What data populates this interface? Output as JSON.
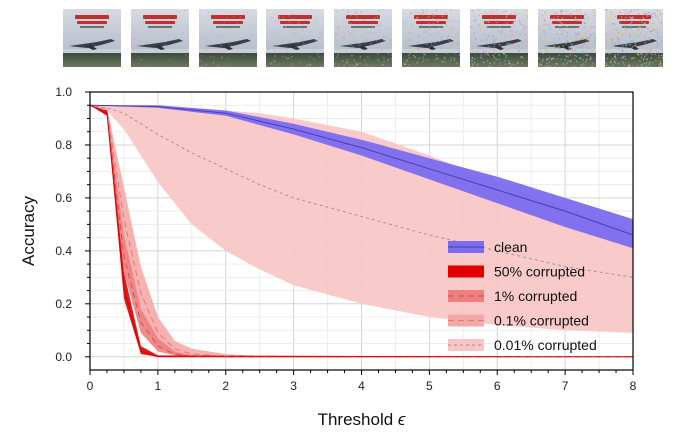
{
  "thumbnails": [
    {
      "name": "thumb-eps-0",
      "noise": 0.0
    },
    {
      "name": "thumb-eps-1",
      "noise": 0.12
    },
    {
      "name": "thumb-eps-2",
      "noise": 0.24
    },
    {
      "name": "thumb-eps-3",
      "noise": 0.36
    },
    {
      "name": "thumb-eps-4",
      "noise": 0.48
    },
    {
      "name": "thumb-eps-5",
      "noise": 0.6
    },
    {
      "name": "thumb-eps-6",
      "noise": 0.72
    },
    {
      "name": "thumb-eps-7",
      "noise": 0.84
    },
    {
      "name": "thumb-eps-8",
      "noise": 0.96
    }
  ],
  "chart_data": {
    "type": "line",
    "title": "",
    "xlabel": "Threshold",
    "xlabel_symbol": "ϵ",
    "ylabel": "Accuracy",
    "xlim": [
      0,
      8
    ],
    "ylim": [
      -0.05,
      1.0
    ],
    "xticks": [
      0,
      1,
      2,
      3,
      4,
      5,
      6,
      7,
      8
    ],
    "yticks": [
      0.0,
      0.2,
      0.4,
      0.6,
      0.8,
      1.0
    ],
    "xtick_labels": [
      "0",
      "1",
      "2",
      "3",
      "4",
      "5",
      "6",
      "7",
      "8"
    ],
    "ytick_labels": [
      "0.0",
      "0.2",
      "0.4",
      "0.6",
      "0.8",
      "1.0"
    ],
    "grid": true,
    "legend_position": "lower-right",
    "series": [
      {
        "name": "0.01% corrupted",
        "color": "#f8c4c4",
        "line_color": "#999999",
        "line_style": "dotted",
        "x": [
          0,
          0.25,
          0.5,
          1,
          1.5,
          2,
          2.5,
          3,
          4,
          5,
          6,
          7,
          8
        ],
        "y": [
          0.95,
          0.94,
          0.92,
          0.84,
          0.77,
          0.71,
          0.65,
          0.6,
          0.53,
          0.46,
          0.4,
          0.34,
          0.3
        ],
        "lower": [
          0.95,
          0.93,
          0.86,
          0.66,
          0.5,
          0.4,
          0.33,
          0.27,
          0.2,
          0.15,
          0.12,
          0.1,
          0.09
        ],
        "upper": [
          0.95,
          0.95,
          0.95,
          0.94,
          0.94,
          0.93,
          0.92,
          0.9,
          0.85,
          0.76,
          0.66,
          0.56,
          0.48
        ]
      },
      {
        "name": "0.1% corrupted",
        "color": "#f5a8a8",
        "line_color": "#e07a7a",
        "line_style": "dashed",
        "x": [
          0,
          0.25,
          0.5,
          0.75,
          1,
          1.25,
          1.5,
          2,
          2.5,
          3,
          8
        ],
        "y": [
          0.95,
          0.93,
          0.52,
          0.24,
          0.09,
          0.03,
          0.01,
          0.003,
          0.001,
          0.0,
          0.0
        ],
        "lower": [
          0.95,
          0.92,
          0.4,
          0.15,
          0.04,
          0.01,
          0.0,
          0.0,
          0.0,
          0.0,
          0.0
        ],
        "upper": [
          0.95,
          0.94,
          0.64,
          0.34,
          0.15,
          0.06,
          0.03,
          0.01,
          0.003,
          0.0,
          0.0
        ]
      },
      {
        "name": "1% corrupted",
        "color": "#ef7f7f",
        "line_color": "#c85050",
        "line_style": "dashed",
        "x": [
          0,
          0.25,
          0.5,
          0.75,
          1,
          1.25,
          1.5,
          2,
          8
        ],
        "y": [
          0.95,
          0.92,
          0.38,
          0.13,
          0.04,
          0.01,
          0.003,
          0.0,
          0.0
        ],
        "lower": [
          0.95,
          0.91,
          0.32,
          0.09,
          0.02,
          0.005,
          0.0,
          0.0,
          0.0
        ],
        "upper": [
          0.95,
          0.93,
          0.46,
          0.18,
          0.07,
          0.02,
          0.005,
          0.0,
          0.0
        ]
      },
      {
        "name": "50% corrupted",
        "color": "#e00000",
        "line_color": "#e00000",
        "line_style": "solid",
        "x": [
          0,
          0.25,
          0.5,
          0.75,
          1,
          8
        ],
        "y": [
          0.95,
          0.92,
          0.26,
          0.02,
          0.0,
          0.0
        ],
        "lower": [
          0.95,
          0.91,
          0.22,
          0.01,
          0.0,
          0.0
        ],
        "upper": [
          0.95,
          0.93,
          0.32,
          0.04,
          0.005,
          0.0
        ]
      },
      {
        "name": "clean",
        "color": "#7b6cf0",
        "line_color": "#4a3fb0",
        "line_style": "solid",
        "x": [
          0,
          1,
          2,
          3,
          4,
          5,
          6,
          7,
          8
        ],
        "y": [
          0.95,
          0.945,
          0.92,
          0.86,
          0.79,
          0.71,
          0.63,
          0.55,
          0.46
        ],
        "lower": [
          0.95,
          0.94,
          0.91,
          0.84,
          0.76,
          0.67,
          0.58,
          0.49,
          0.41
        ],
        "upper": [
          0.95,
          0.95,
          0.93,
          0.88,
          0.82,
          0.75,
          0.68,
          0.6,
          0.52
        ]
      }
    ],
    "legend_order": [
      "clean",
      "50% corrupted",
      "1% corrupted",
      "0.1% corrupted",
      "0.01% corrupted"
    ]
  }
}
